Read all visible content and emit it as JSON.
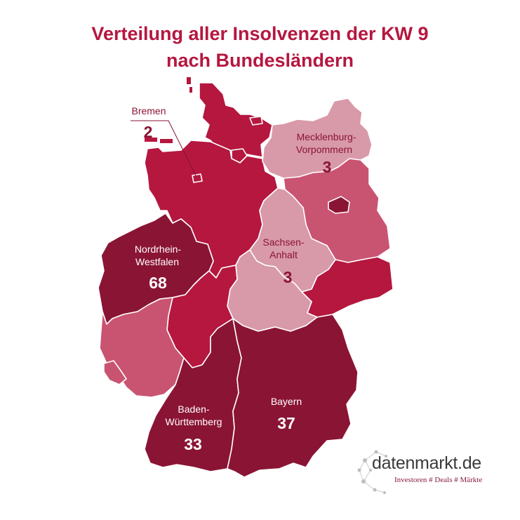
{
  "title": {
    "line1": "Verteilung aller Insolvenzen der KW 9",
    "line2": "nach Bundesländern"
  },
  "colors": {
    "title": "#b5173f",
    "darkest": "#8a1434",
    "crimson": "#b5173f",
    "medium": "#c95472",
    "light": "#d899a9",
    "berlin": "#8a1434"
  },
  "labels": {
    "bremen": {
      "name": "Bremen",
      "value": "2"
    },
    "mv": {
      "name_line1": "Mecklenburg-",
      "name_line2": "Vorpommern",
      "value": "3"
    },
    "st": {
      "name_line1": "Sachsen-",
      "name_line2": "Anhalt",
      "value": "3"
    },
    "nrw": {
      "name_line1": "Nordrhein-",
      "name_line2": "Westfalen",
      "value": "68"
    },
    "by": {
      "name": "Bayern",
      "value": "37"
    },
    "bw": {
      "name_line1": "Baden-",
      "name_line2": "Württemberg",
      "value": "33"
    }
  },
  "logo": {
    "wordmark": "datenmarkt.de",
    "tagline": "Investoren # Deals # Märkte"
  }
}
